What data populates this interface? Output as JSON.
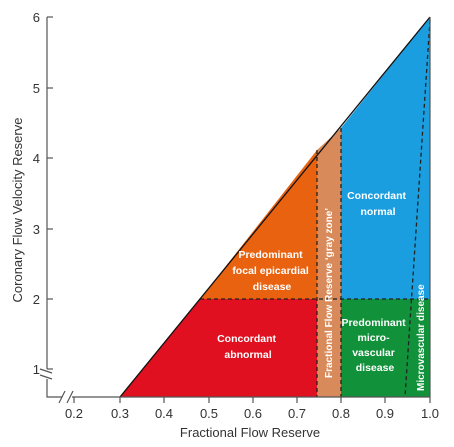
{
  "diagram": {
    "x_axis": {
      "title": "Fractional Flow Reserve",
      "ticks": [
        "0.2",
        "0.3",
        "0.4",
        "0.5",
        "0.6",
        "0.7",
        "0.8",
        "0.9",
        "1.0"
      ]
    },
    "y_axis": {
      "title": "Coronary Flow Velocity Reserve",
      "ticks": [
        "1",
        "2",
        "3",
        "4",
        "5",
        "6"
      ]
    },
    "regions": {
      "concordant_abnormal": {
        "lines": [
          "Concordant",
          "abnormal"
        ],
        "color": "#e01020"
      },
      "focal_epicardial": {
        "lines": [
          "Predominant",
          "focal epicardial",
          "disease"
        ],
        "color": "#e8620f"
      },
      "gray_zone": {
        "label": "Fractional Flow Reserve ‘gray zone’",
        "color": "#d98a5a"
      },
      "concordant_normal": {
        "lines": [
          "Concordant",
          "normal"
        ],
        "color": "#1a9ee0"
      },
      "microvascular": {
        "lines": [
          "Predominant",
          "micro-",
          "vascular",
          "disease"
        ],
        "color": "#12913b"
      },
      "microvascular_strip": {
        "label": "Microvascular disease",
        "color": "#12913b"
      }
    }
  }
}
